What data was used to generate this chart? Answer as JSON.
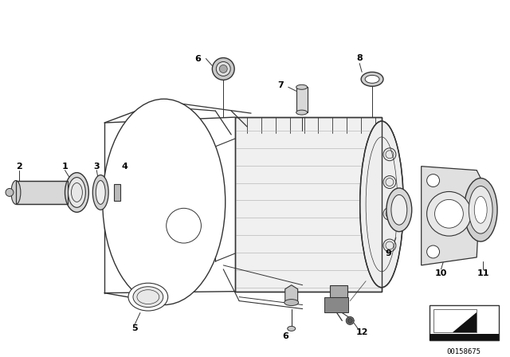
{
  "bg_color": "#ffffff",
  "line_color": "#333333",
  "label_color": "#000000",
  "diagram_code": "00158675",
  "fig_width": 6.4,
  "fig_height": 4.48,
  "dpi": 100
}
